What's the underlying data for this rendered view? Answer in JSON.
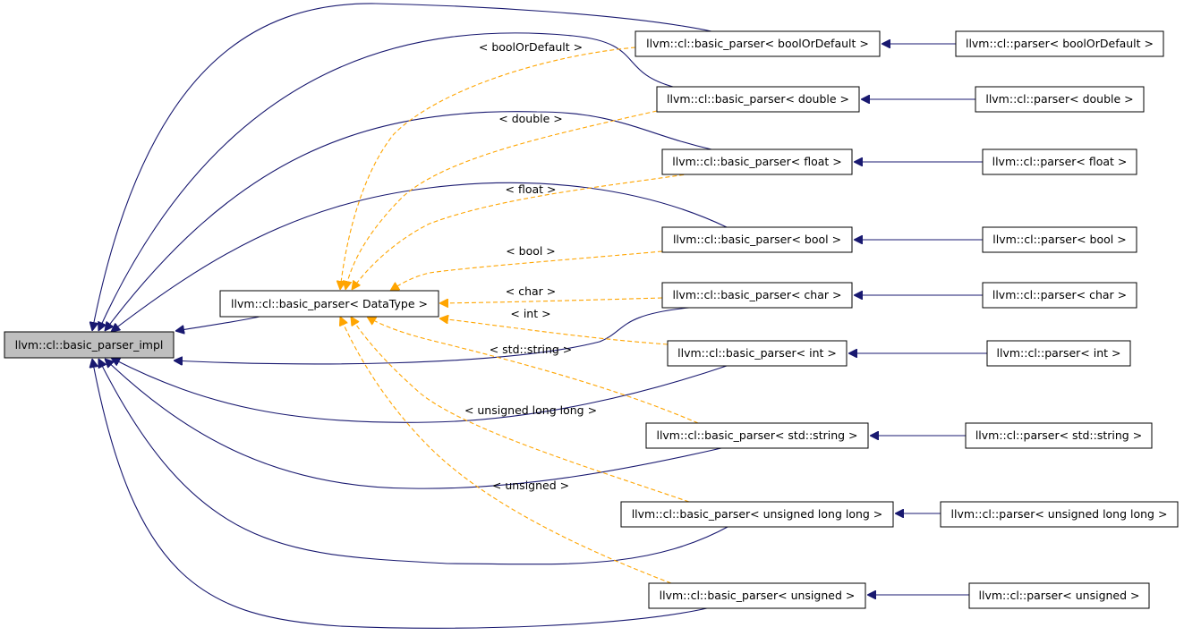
{
  "nodes": {
    "root": "llvm::cl::basic_parser_impl",
    "template": "llvm::cl::basic_parser< DataType >",
    "bp_boolOrDefault": "llvm::cl::basic_parser< boolOrDefault >",
    "bp_double": "llvm::cl::basic_parser< double >",
    "bp_float": "llvm::cl::basic_parser< float >",
    "bp_bool": "llvm::cl::basic_parser< bool >",
    "bp_char": "llvm::cl::basic_parser< char >",
    "bp_int": "llvm::cl::basic_parser< int >",
    "bp_string": "llvm::cl::basic_parser< std::string >",
    "bp_ull": "llvm::cl::basic_parser< unsigned long long >",
    "bp_unsigned": "llvm::cl::basic_parser< unsigned >",
    "p_boolOrDefault": "llvm::cl::parser< boolOrDefault >",
    "p_double": "llvm::cl::parser< double >",
    "p_float": "llvm::cl::parser< float >",
    "p_bool": "llvm::cl::parser< bool >",
    "p_char": "llvm::cl::parser< char >",
    "p_int": "llvm::cl::parser< int >",
    "p_string": "llvm::cl::parser< std::string >",
    "p_ull": "llvm::cl::parser< unsigned long long >",
    "p_unsigned": "llvm::cl::parser< unsigned >"
  },
  "edge_labels": {
    "boolOrDefault": "< boolOrDefault >",
    "double": "< double >",
    "float": "< float >",
    "bool": "< bool >",
    "char": "< char >",
    "int": "< int >",
    "string": "< std::string >",
    "ull": "< unsigned long long >",
    "unsigned": "< unsigned >"
  },
  "colors": {
    "inheritance_edge": "#191970",
    "template_edge": "#ffa500",
    "root_fill": "#bfbfbf"
  }
}
